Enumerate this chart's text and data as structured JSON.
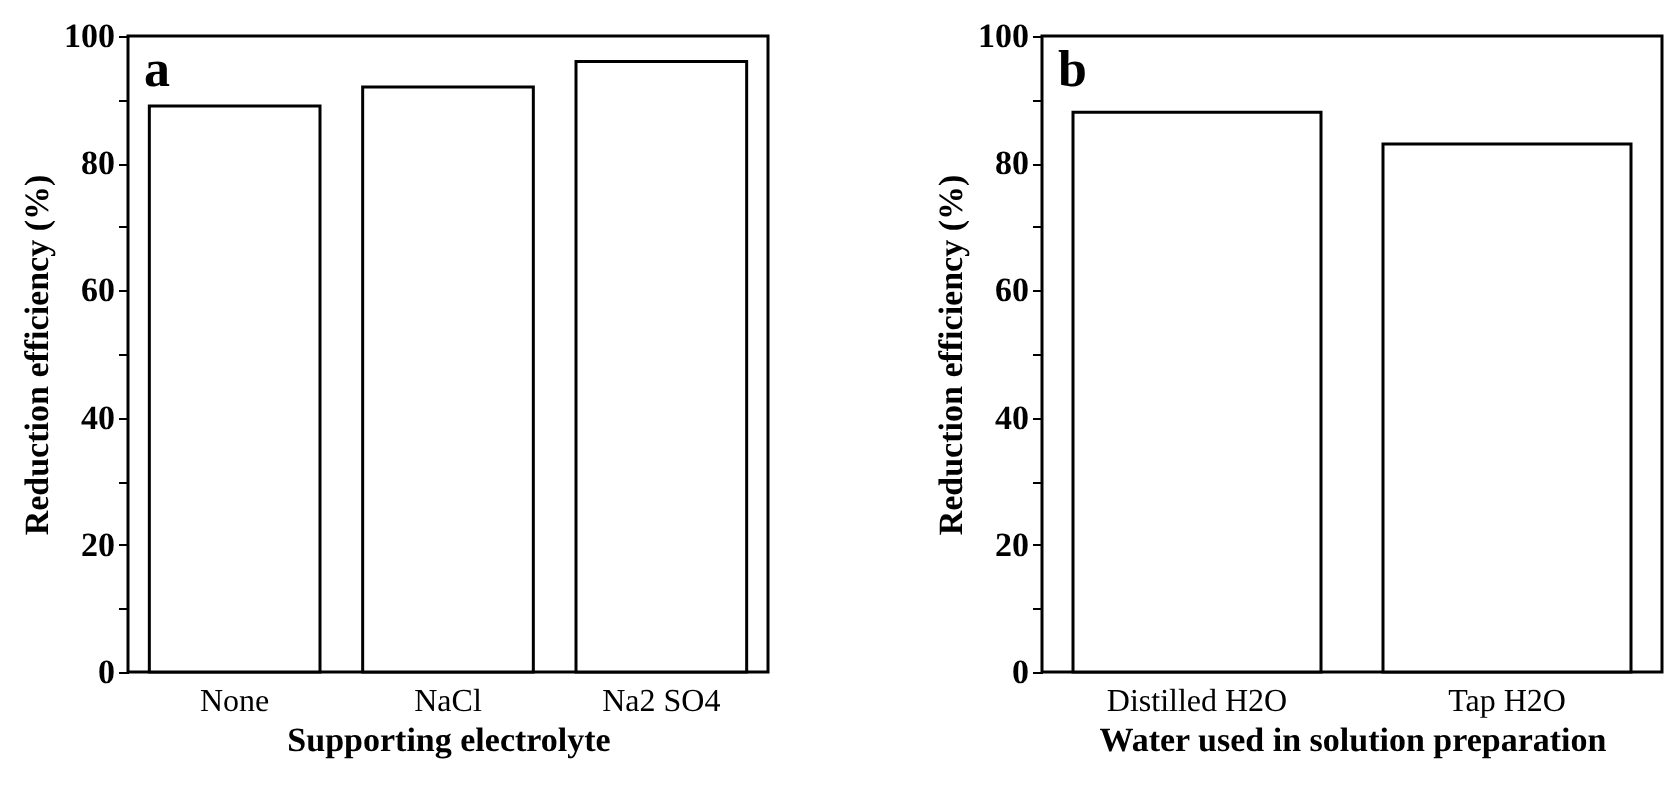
{
  "chart_data": [
    {
      "type": "bar",
      "categories": [
        "None",
        "NaCl",
        "Na2 SO4"
      ],
      "values": [
        89,
        92,
        96
      ],
      "color": "#ffffff",
      "xlabel": "Supporting electrolyte",
      "ylabel": "Reduction efficiency (%)",
      "ylim": [
        0,
        100
      ],
      "yticks": [
        0,
        {
          "value": 10,
          "label": null
        },
        20,
        {
          "value": 30,
          "label": null
        },
        40,
        {
          "value": 50,
          "label": null
        },
        60,
        {
          "value": 70,
          "label": null
        },
        80,
        {
          "value": 90,
          "label": null
        },
        100
      ],
      "annotations": [
        "a"
      ]
    },
    {
      "type": "bar",
      "categories": [
        "Distilled H2O",
        "Tap H2O"
      ],
      "values": [
        88,
        83
      ],
      "color": "#ffffff",
      "xlabel": "Water used in solution preparation",
      "ylabel": "Reduction efficiency (%)",
      "ylim": [
        0,
        100
      ],
      "yticks": [
        0,
        {
          "value": 10,
          "label": null
        },
        20,
        {
          "value": 30,
          "label": null
        },
        40,
        {
          "value": 50,
          "label": null
        },
        60,
        {
          "value": 70,
          "label": null
        },
        80,
        {
          "value": 90,
          "label": null
        },
        100
      ],
      "annotations": [
        "b"
      ]
    }
  ]
}
